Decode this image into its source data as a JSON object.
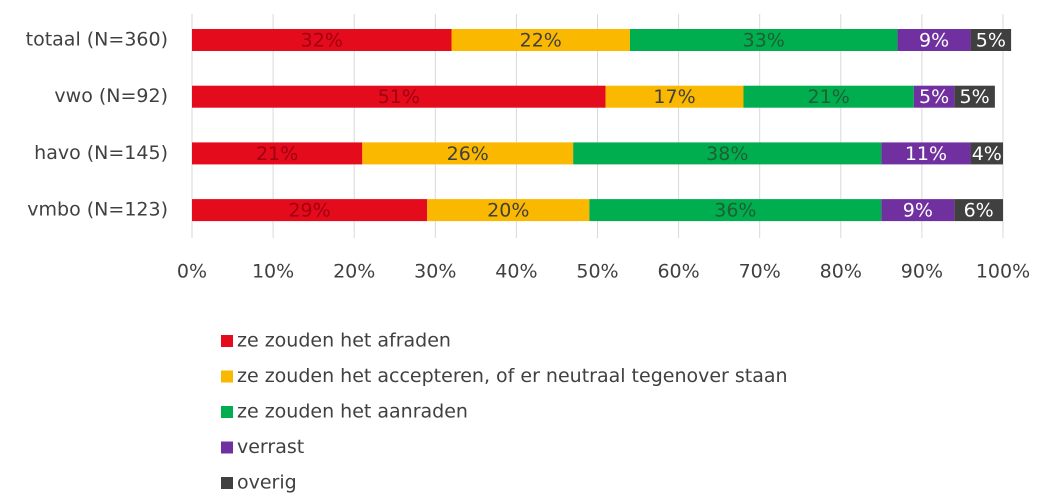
{
  "chart_data": {
    "type": "stacked-bar-horizontal",
    "categories": [
      "totaal (N=360)",
      "vwo (N=92)",
      "havo (N=145)",
      "vmbo (N=123)"
    ],
    "series": [
      {
        "name": "ze zouden het afraden",
        "color": "#e30b1c",
        "label_color": "#a00010",
        "values": [
          32,
          51,
          21,
          29
        ],
        "value_labels": [
          "32%",
          "51%",
          "21%",
          "29%"
        ]
      },
      {
        "name": "ze zouden het accepteren, of er neutraal tegenover staan",
        "color": "#fbb800",
        "label_color": "#404040",
        "values": [
          22,
          17,
          26,
          20
        ],
        "value_labels": [
          "22%",
          "17%",
          "26%",
          "20%"
        ]
      },
      {
        "name": "ze zouden het aanraden",
        "color": "#00ad4f",
        "label_color": "#1f5f34",
        "values": [
          33,
          21,
          38,
          36
        ],
        "value_labels": [
          "33%",
          "21%",
          "38%",
          "36%"
        ]
      },
      {
        "name": "verrast",
        "color": "#7030a0",
        "label_color": "#ffffff",
        "values": [
          9,
          5,
          11,
          9
        ],
        "value_labels": [
          "9%",
          "5%",
          "11%",
          "9%"
        ]
      },
      {
        "name": "overig",
        "color": "#404040",
        "label_color": "#ffffff",
        "values": [
          5,
          5,
          4,
          6
        ],
        "value_labels": [
          "5%",
          "5%",
          "4%",
          "6%"
        ]
      }
    ],
    "xlim": [
      0,
      100
    ],
    "xticks": [
      {
        "value": 0,
        "label": "0%"
      },
      {
        "value": 10,
        "label": "10%"
      },
      {
        "value": 20,
        "label": "20%"
      },
      {
        "value": 30,
        "label": "30%"
      },
      {
        "value": 40,
        "label": "40%"
      },
      {
        "value": 50,
        "label": "50%"
      },
      {
        "value": 60,
        "label": "60%"
      },
      {
        "value": 70,
        "label": "70%"
      },
      {
        "value": 80,
        "label": "80%"
      },
      {
        "value": 90,
        "label": "90%"
      },
      {
        "value": 100,
        "label": "100%"
      }
    ],
    "grid": true,
    "legend": "bottom"
  }
}
